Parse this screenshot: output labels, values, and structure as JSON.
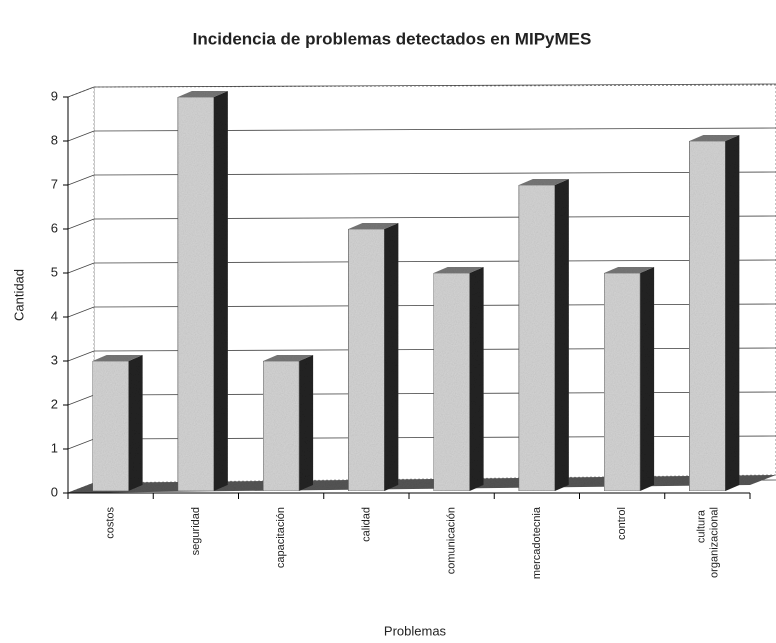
{
  "chart_data": {
    "type": "bar3d",
    "title": "Incidencia de problemas detectados en MIPyMES",
    "categories": [
      "costos",
      "seguridad",
      "capacitación",
      "calidad",
      "comunicación",
      "mercadotecnia",
      "control",
      "cultura organizacional"
    ],
    "values": [
      3,
      9,
      3,
      6,
      5,
      7,
      5,
      8
    ],
    "color": "#d4d4d4",
    "x_label": "Problemas",
    "y_label": "Cantidad",
    "ylim": [
      0,
      9
    ],
    "yticks": [
      0,
      1,
      2,
      3,
      4,
      5,
      6,
      7,
      8,
      9
    ],
    "grid": true
  }
}
